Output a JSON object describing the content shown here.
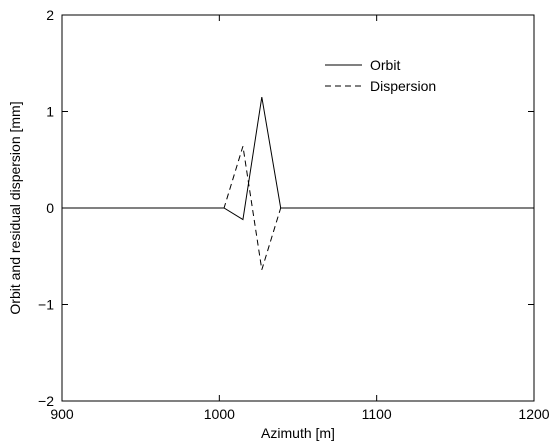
{
  "chart_data": {
    "type": "line",
    "title": "",
    "xlabel": "Azimuth [m]",
    "ylabel": "Orbit and residual dispersion [mm]",
    "xlim": [
      900,
      1200
    ],
    "ylim": [
      -2,
      2
    ],
    "xticks": [
      900,
      1000,
      1100,
      1200
    ],
    "yticks": [
      -2,
      -1,
      0,
      1,
      2
    ],
    "xtick_labels": [
      "900",
      "1000",
      "1100",
      "1200"
    ],
    "ytick_labels": [
      "−2",
      "−1",
      "0",
      "1",
      "2"
    ],
    "grid": false,
    "legend_position": "top-right",
    "series": [
      {
        "name": "Orbit",
        "style": "solid",
        "color": "#000000",
        "x": [
          900,
          1003,
          1015,
          1027,
          1039,
          1200
        ],
        "y": [
          0,
          0,
          -0.12,
          1.15,
          0,
          0
        ]
      },
      {
        "name": "Dispersion",
        "style": "dashed",
        "color": "#000000",
        "x": [
          977,
          1003,
          1015,
          1027,
          1039,
          1200
        ],
        "y": [
          0,
          0,
          0.64,
          -0.64,
          0,
          0
        ]
      }
    ]
  }
}
